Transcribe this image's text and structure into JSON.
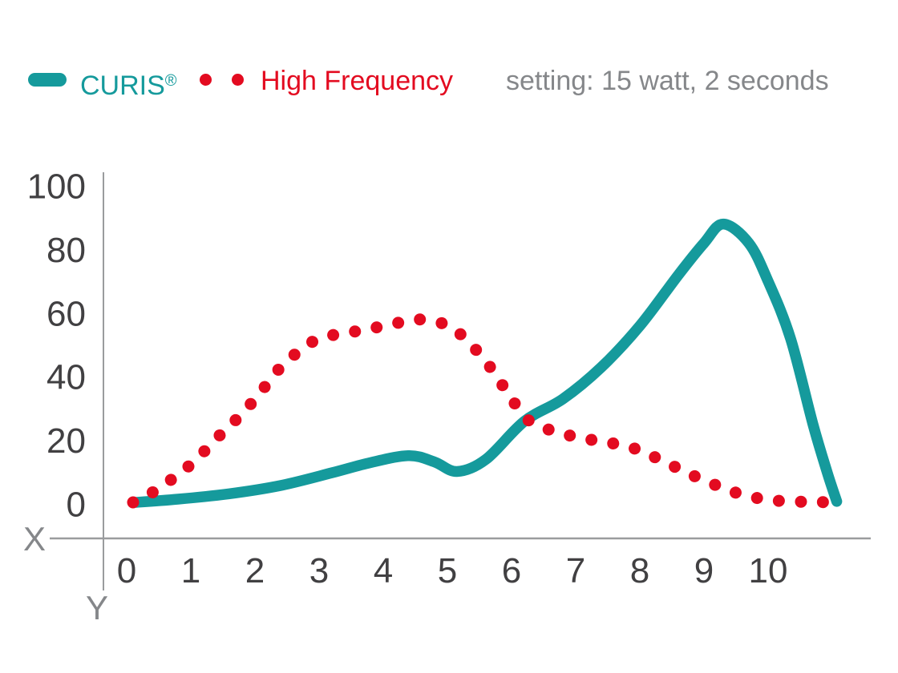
{
  "header": {
    "legend": [
      {
        "name": "CURIS",
        "registered": "®",
        "marker": "line",
        "color": "#159a9c"
      },
      {
        "name": "High Frequency",
        "marker": "dots",
        "color": "#e30b20"
      }
    ],
    "setting_text": "setting: 15 watt, 2 seconds"
  },
  "colors": {
    "curis_teal": "#159a9c",
    "high_frequency_red": "#e30b20",
    "axis_line": "#9a9c9e",
    "tick_text": "#414042",
    "muted_text": "#85878a",
    "background": "#ffffff"
  },
  "chart_data": {
    "type": "line",
    "title": "",
    "xlabel": "X",
    "ylabel": "Y",
    "x_ticks": [
      0,
      1,
      2,
      3,
      4,
      5,
      6,
      7,
      8,
      9,
      10
    ],
    "y_ticks": [
      0,
      20,
      40,
      60,
      80,
      100
    ],
    "xlim": [
      0,
      11.6
    ],
    "ylim": [
      0,
      100
    ],
    "grid": false,
    "legend_position": "top-left",
    "annotation": "setting: 15 watt, 2 seconds",
    "series": [
      {
        "name": "CURIS®",
        "color": "#159a9c",
        "style": "solid",
        "points": [
          [
            0.15,
            0.5
          ],
          [
            0.8,
            1.5
          ],
          [
            1.6,
            3.2
          ],
          [
            2.4,
            5.8
          ],
          [
            3.2,
            9.8
          ],
          [
            3.8,
            13
          ],
          [
            4.4,
            15.2
          ],
          [
            4.8,
            13.2
          ],
          [
            5.15,
            10.2
          ],
          [
            5.6,
            14
          ],
          [
            6.2,
            26
          ],
          [
            6.8,
            33
          ],
          [
            7.4,
            43
          ],
          [
            8.0,
            56
          ],
          [
            8.6,
            72
          ],
          [
            9.0,
            82
          ],
          [
            9.3,
            88
          ],
          [
            9.7,
            82
          ],
          [
            10.0,
            70
          ],
          [
            10.35,
            52
          ],
          [
            10.7,
            25
          ],
          [
            10.92,
            10
          ],
          [
            11.07,
            0.8
          ]
        ]
      },
      {
        "name": "High Frequency",
        "color": "#e30b20",
        "style": "dotted",
        "points": [
          [
            0.1,
            0.5
          ],
          [
            0.35,
            3
          ],
          [
            0.6,
            6.3
          ],
          [
            0.85,
            10
          ],
          [
            1.1,
            14.2
          ],
          [
            1.32,
            19
          ],
          [
            1.55,
            23.5
          ],
          [
            1.78,
            28
          ],
          [
            2.0,
            33
          ],
          [
            2.2,
            38
          ],
          [
            2.4,
            43
          ],
          [
            2.62,
            47
          ],
          [
            2.85,
            50.5
          ],
          [
            3.1,
            52.5
          ],
          [
            3.4,
            53.8
          ],
          [
            3.7,
            54.6
          ],
          [
            4.0,
            56
          ],
          [
            4.3,
            57.2
          ],
          [
            4.55,
            58
          ],
          [
            4.85,
            57.2
          ],
          [
            5.1,
            55
          ],
          [
            5.35,
            50.5
          ],
          [
            5.6,
            44.8
          ],
          [
            5.82,
            38.5
          ],
          [
            6.02,
            32.5
          ],
          [
            6.22,
            27
          ],
          [
            6.5,
            24
          ],
          [
            6.8,
            22
          ],
          [
            7.1,
            20.8
          ],
          [
            7.38,
            19.6
          ],
          [
            7.65,
            18.8
          ],
          [
            7.92,
            17.4
          ],
          [
            8.18,
            15.2
          ],
          [
            8.45,
            12.6
          ],
          [
            8.72,
            10
          ],
          [
            9.0,
            7.4
          ],
          [
            9.28,
            5.2
          ],
          [
            9.55,
            3.2
          ],
          [
            9.85,
            1.8
          ],
          [
            10.15,
            1.0
          ],
          [
            10.5,
            0.7
          ],
          [
            10.8,
            0.6
          ],
          [
            11.08,
            0.5
          ]
        ]
      }
    ]
  }
}
